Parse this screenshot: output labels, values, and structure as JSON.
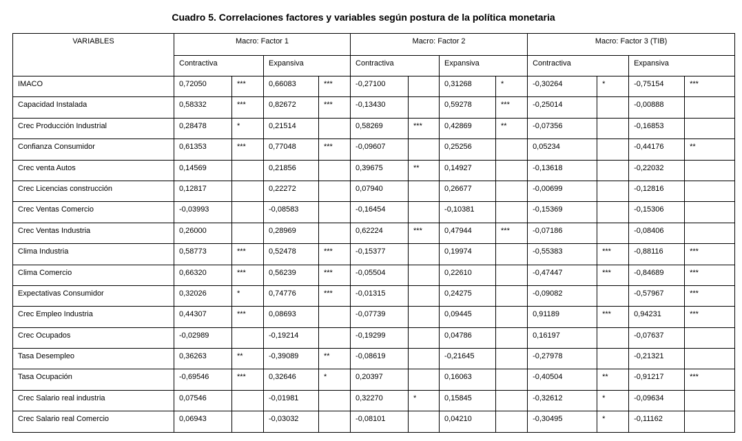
{
  "title": "Cuadro 5. Correlaciones factores y variables según postura de la política monetaria",
  "table": {
    "variables_header": "VARIABLES",
    "groups": [
      {
        "label": "Macro: Factor 1",
        "sub": [
          "Contractiva",
          "Expansiva"
        ]
      },
      {
        "label": "Macro: Factor 2",
        "sub": [
          "Contractiva",
          "Expansiva"
        ]
      },
      {
        "label": "Macro: Factor 3 (TIB)",
        "sub": [
          "Contractiva",
          "Expansiva"
        ]
      }
    ],
    "rows": [
      {
        "label": "IMACO",
        "cells": [
          "0,72050",
          "***",
          "0,66083",
          "***",
          "-0,27100",
          null,
          "0,31268",
          "*",
          "-0,30264",
          "*",
          "-0,75154",
          "***"
        ]
      },
      {
        "label": "Capacidad Instalada",
        "cells": [
          "0,58332",
          "***",
          "0,82672",
          "***",
          "-0,13430",
          null,
          "0,59278",
          "***",
          "-0,25014",
          null,
          "-0,00888",
          null
        ]
      },
      {
        "label": "Crec Producción Industrial",
        "cells": [
          "0,28478",
          "*",
          "0,21514",
          null,
          "0,58269",
          "***",
          "0,42869",
          "**",
          "-0,07356",
          null,
          "-0,16853",
          null
        ]
      },
      {
        "label": "Confianza Consumidor",
        "cells": [
          "0,61353",
          "***",
          "0,77048",
          "***",
          "-0,09607",
          null,
          "0,25256",
          null,
          "0,05234",
          null,
          "-0,44176",
          "**"
        ]
      },
      {
        "label": "Crec venta Autos",
        "cells": [
          "0,14569",
          null,
          "0,21856",
          null,
          "0,39675",
          "**",
          "0,14927",
          null,
          "-0,13618",
          null,
          "-0,22032",
          null
        ]
      },
      {
        "label": "Crec Licencias construcción",
        "cells": [
          "0,12817",
          null,
          "0,22272",
          null,
          "0,07940",
          null,
          "0,26677",
          null,
          "-0,00699",
          null,
          "-0,12816",
          null
        ]
      },
      {
        "label": "Crec Ventas Comercio",
        "cells": [
          "-0,03993",
          null,
          "-0,08583",
          null,
          "-0,16454",
          null,
          "-0,10381",
          null,
          "-0,15369",
          null,
          "-0,15306",
          null
        ]
      },
      {
        "label": "Crec Ventas Industria",
        "cells": [
          "0,26000",
          null,
          "0,28969",
          null,
          "0,62224",
          "***",
          "0,47944",
          "***",
          "-0,07186",
          null,
          "-0,08406",
          null
        ]
      },
      {
        "label": "Clima Industria",
        "cells": [
          "0,58773",
          "***",
          "0,52478",
          "***",
          "-0,15377",
          null,
          "0,19974",
          null,
          "-0,55383",
          "***",
          "-0,88116",
          "***"
        ]
      },
      {
        "label": "Clima Comercio",
        "cells": [
          "0,66320",
          "***",
          "0,56239",
          "***",
          "-0,05504",
          null,
          "0,22610",
          null,
          "-0,47447",
          "***",
          "-0,84689",
          "***"
        ]
      },
      {
        "label": "Expectativas Consumidor",
        "cells": [
          "0,32026",
          "*",
          "0,74776",
          "***",
          "-0,01315",
          null,
          "0,24275",
          null,
          "-0,09082",
          null,
          "-0,57967",
          "***"
        ]
      },
      {
        "label": "Crec Empleo Industria",
        "cells": [
          "0,44307",
          "***",
          "0,08693",
          null,
          "-0,07739",
          null,
          "0,09445",
          null,
          "0,91189",
          "***",
          "0,94231",
          "***"
        ]
      },
      {
        "label": "Crec Ocupados",
        "cells": [
          "-0,02989",
          null,
          "-0,19214",
          null,
          "-0,19299",
          null,
          "0,04786",
          null,
          "0,16197",
          null,
          "-0,07637",
          null
        ]
      },
      {
        "label": "Tasa Desempleo",
        "cells": [
          "0,36263",
          "**",
          "-0,39089",
          "**",
          "-0,08619",
          null,
          "-0,21645",
          null,
          "-0,27978",
          null,
          "-0,21321",
          null
        ]
      },
      {
        "label": "Tasa Ocupación",
        "cells": [
          "-0,69546",
          "***",
          "0,32646",
          "*",
          "0,20397",
          null,
          "0,16063",
          null,
          "-0,40504",
          "**",
          "-0,91217",
          "***"
        ]
      },
      {
        "label": "Crec Salario real industria",
        "cells": [
          "0,07546",
          null,
          "-0,01981",
          null,
          "0,32270",
          "*",
          "0,15845",
          null,
          "-0,32612",
          "*",
          "-0,09634",
          null
        ]
      },
      {
        "label": "Crec Salario real Comercio",
        "cells": [
          "0,06943",
          null,
          "-0,03032",
          null,
          "-0,08101",
          null,
          "0,04210",
          null,
          "-0,30495",
          "*",
          "-0,11162",
          null
        ]
      }
    ]
  }
}
